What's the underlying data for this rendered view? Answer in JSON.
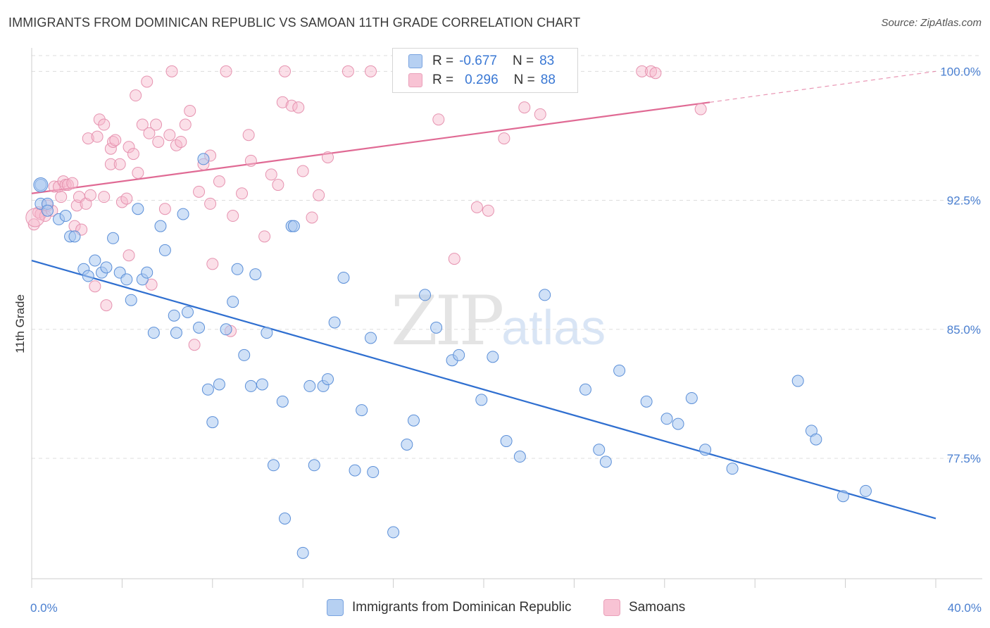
{
  "title": "IMMIGRANTS FROM DOMINICAN REPUBLIC VS SAMOAN 11TH GRADE CORRELATION CHART",
  "source": "Source: ZipAtlas.com",
  "watermark": {
    "zip": "ZIP",
    "atlas": "atlas"
  },
  "legend": {
    "blue": {
      "r_label": "R =",
      "r_value": "-0.677",
      "n_label": "N =",
      "n_value": "83"
    },
    "pink": {
      "r_label": "R =",
      "r_value": "0.296",
      "n_label": "N =",
      "n_value": "88"
    }
  },
  "bottom_legend": {
    "blue": "Immigrants from Dominican Republic",
    "pink": "Samoans"
  },
  "colors": {
    "blue_fill": "#a9c8f0",
    "blue_stroke": "#5b8fd8",
    "blue_line": "#2f6fd0",
    "pink_fill": "#f6b8cc",
    "pink_stroke": "#e693b0",
    "pink_line": "#e06a94",
    "grid": "#dddddd",
    "tick_text": "#4a7fd0"
  },
  "chart_data": {
    "type": "scatter",
    "title": "IMMIGRANTS FROM DOMINICAN REPUBLIC VS SAMOAN 11TH GRADE CORRELATION CHART",
    "xlabel": "",
    "ylabel": "11th Grade",
    "xlim": [
      0,
      40
    ],
    "ylim": [
      70.5,
      101.2
    ],
    "x_tick_labels": [
      "0.0%",
      "40.0%"
    ],
    "y_ticks": [
      77.5,
      85.0,
      92.5,
      100.0
    ],
    "y_tick_labels": [
      "77.5%",
      "85.0%",
      "92.5%",
      "100.0%"
    ],
    "grid": true,
    "legend_position": "top-center",
    "series": [
      {
        "name": "Immigrants from Dominican Republic",
        "color": "#a9c8f0",
        "r": -0.677,
        "n": 83,
        "trend": {
          "x": [
            0,
            40
          ],
          "y": [
            89.0,
            74.0
          ]
        },
        "points": [
          [
            0.4,
            93.4
          ],
          [
            0.4,
            92.3
          ],
          [
            0.7,
            92.3
          ],
          [
            0.7,
            91.9
          ],
          [
            1.2,
            91.4
          ],
          [
            1.5,
            91.6
          ],
          [
            1.7,
            90.4
          ],
          [
            1.9,
            90.4
          ],
          [
            2.3,
            88.5
          ],
          [
            2.5,
            88.1
          ],
          [
            2.8,
            89.0
          ],
          [
            3.1,
            88.3
          ],
          [
            3.3,
            88.6
          ],
          [
            3.6,
            90.3
          ],
          [
            3.9,
            88.3
          ],
          [
            4.2,
            87.9
          ],
          [
            4.4,
            86.7
          ],
          [
            4.7,
            92.0
          ],
          [
            4.9,
            87.9
          ],
          [
            5.1,
            88.3
          ],
          [
            5.4,
            84.8
          ],
          [
            5.7,
            91.0
          ],
          [
            5.9,
            89.6
          ],
          [
            6.3,
            85.8
          ],
          [
            6.4,
            84.8
          ],
          [
            6.7,
            91.7
          ],
          [
            6.9,
            86.0
          ],
          [
            7.4,
            85.1
          ],
          [
            7.6,
            94.9
          ],
          [
            7.8,
            81.5
          ],
          [
            8.0,
            79.6
          ],
          [
            8.3,
            81.8
          ],
          [
            8.6,
            85.0
          ],
          [
            8.9,
            86.6
          ],
          [
            9.1,
            88.5
          ],
          [
            9.4,
            83.5
          ],
          [
            9.7,
            81.7
          ],
          [
            9.9,
            88.2
          ],
          [
            10.2,
            81.8
          ],
          [
            10.4,
            84.8
          ],
          [
            10.7,
            77.1
          ],
          [
            11.1,
            80.8
          ],
          [
            11.2,
            74.0
          ],
          [
            11.5,
            91.0
          ],
          [
            11.6,
            91.0
          ],
          [
            12.0,
            72.0
          ],
          [
            12.3,
            81.7
          ],
          [
            12.5,
            77.1
          ],
          [
            12.9,
            81.7
          ],
          [
            13.1,
            82.1
          ],
          [
            13.4,
            85.4
          ],
          [
            13.8,
            88.0
          ],
          [
            14.3,
            76.8
          ],
          [
            14.6,
            80.3
          ],
          [
            15.0,
            84.5
          ],
          [
            15.1,
            76.7
          ],
          [
            16.0,
            73.2
          ],
          [
            16.6,
            78.3
          ],
          [
            16.9,
            79.7
          ],
          [
            17.4,
            87.0
          ],
          [
            17.9,
            85.1
          ],
          [
            18.6,
            83.2
          ],
          [
            18.9,
            83.5
          ],
          [
            19.9,
            80.9
          ],
          [
            20.4,
            83.4
          ],
          [
            21.0,
            78.5
          ],
          [
            21.6,
            77.6
          ],
          [
            22.7,
            87.0
          ],
          [
            24.5,
            81.5
          ],
          [
            25.1,
            78.0
          ],
          [
            25.4,
            77.3
          ],
          [
            26.0,
            82.6
          ],
          [
            27.2,
            80.8
          ],
          [
            28.1,
            79.8
          ],
          [
            28.6,
            79.5
          ],
          [
            29.2,
            81.0
          ],
          [
            29.8,
            78.0
          ],
          [
            31.0,
            76.9
          ],
          [
            33.9,
            82.0
          ],
          [
            34.5,
            79.1
          ],
          [
            34.7,
            78.6
          ],
          [
            35.9,
            75.3
          ],
          [
            36.9,
            75.6
          ]
        ]
      },
      {
        "name": "Samoans",
        "color": "#f6b8cc",
        "r": 0.296,
        "n": 88,
        "trend": {
          "x": [
            0,
            30
          ],
          "y": [
            92.9,
            98.2
          ]
        },
        "trend_dashed": {
          "x": [
            30,
            40
          ],
          "y": [
            98.2,
            100.0
          ]
        },
        "points": [
          [
            0.1,
            91.1
          ],
          [
            0.3,
            91.8
          ],
          [
            0.4,
            91.7
          ],
          [
            0.6,
            91.6
          ],
          [
            0.7,
            92.2
          ],
          [
            0.9,
            91.9
          ],
          [
            1.0,
            93.3
          ],
          [
            1.2,
            93.3
          ],
          [
            1.3,
            92.7
          ],
          [
            1.4,
            93.6
          ],
          [
            1.5,
            93.4
          ],
          [
            1.6,
            93.4
          ],
          [
            1.8,
            93.5
          ],
          [
            1.9,
            91.0
          ],
          [
            2.0,
            92.2
          ],
          [
            2.1,
            92.7
          ],
          [
            2.2,
            90.8
          ],
          [
            2.4,
            92.3
          ],
          [
            2.5,
            96.1
          ],
          [
            2.6,
            92.8
          ],
          [
            2.8,
            87.5
          ],
          [
            2.9,
            96.2
          ],
          [
            3.0,
            97.2
          ],
          [
            3.2,
            92.7
          ],
          [
            3.2,
            96.9
          ],
          [
            3.3,
            86.4
          ],
          [
            3.5,
            95.5
          ],
          [
            3.5,
            94.6
          ],
          [
            3.6,
            95.9
          ],
          [
            3.7,
            96.0
          ],
          [
            3.9,
            94.6
          ],
          [
            4.0,
            92.4
          ],
          [
            4.2,
            92.6
          ],
          [
            4.3,
            95.6
          ],
          [
            4.3,
            89.3
          ],
          [
            4.5,
            95.2
          ],
          [
            4.6,
            98.6
          ],
          [
            4.7,
            94.1
          ],
          [
            4.9,
            96.9
          ],
          [
            5.1,
            99.4
          ],
          [
            5.2,
            96.4
          ],
          [
            5.3,
            87.6
          ],
          [
            5.5,
            96.9
          ],
          [
            5.6,
            95.9
          ],
          [
            5.9,
            92.0
          ],
          [
            6.1,
            96.3
          ],
          [
            6.2,
            100.0
          ],
          [
            6.4,
            95.7
          ],
          [
            6.6,
            95.9
          ],
          [
            6.8,
            96.9
          ],
          [
            7.0,
            97.7
          ],
          [
            7.2,
            84.1
          ],
          [
            7.4,
            93.0
          ],
          [
            7.6,
            94.6
          ],
          [
            7.9,
            92.3
          ],
          [
            7.9,
            95.1
          ],
          [
            8.0,
            88.8
          ],
          [
            8.3,
            93.6
          ],
          [
            8.6,
            100.0
          ],
          [
            8.8,
            84.9
          ],
          [
            8.9,
            91.6
          ],
          [
            9.3,
            92.9
          ],
          [
            9.6,
            96.3
          ],
          [
            9.7,
            94.8
          ],
          [
            10.3,
            90.4
          ],
          [
            10.6,
            94.0
          ],
          [
            10.9,
            93.4
          ],
          [
            11.1,
            98.2
          ],
          [
            11.2,
            100.0
          ],
          [
            11.5,
            98.0
          ],
          [
            11.8,
            97.9
          ],
          [
            12.0,
            94.2
          ],
          [
            12.4,
            91.5
          ],
          [
            12.7,
            92.8
          ],
          [
            13.1,
            95.0
          ],
          [
            14.0,
            100.0
          ],
          [
            15.0,
            100.0
          ],
          [
            18.0,
            97.2
          ],
          [
            18.7,
            89.1
          ],
          [
            19.7,
            92.1
          ],
          [
            20.2,
            91.9
          ],
          [
            20.9,
            96.1
          ],
          [
            21.8,
            97.9
          ],
          [
            22.5,
            97.5
          ],
          [
            27.0,
            100.0
          ],
          [
            27.4,
            100.0
          ],
          [
            27.6,
            99.9
          ],
          [
            29.6,
            97.8
          ]
        ]
      }
    ]
  }
}
